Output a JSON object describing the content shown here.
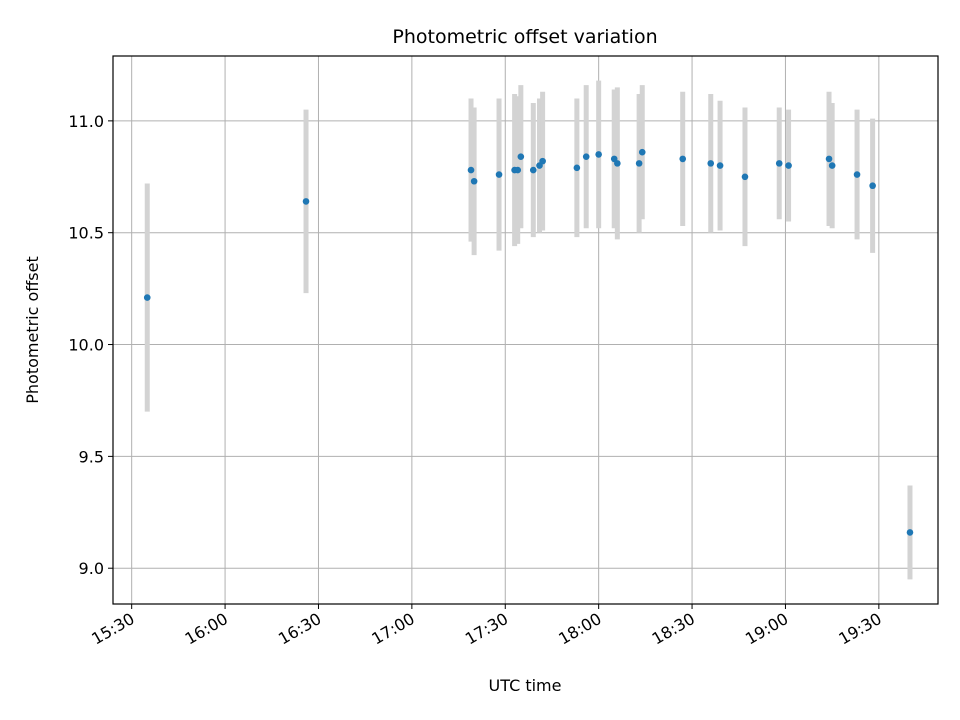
{
  "chart_data": {
    "type": "scatter",
    "title": "Photometric offset variation",
    "xlabel": "UTC time",
    "ylabel": "Photometric offset",
    "xlim": [
      "15:24",
      "19:49"
    ],
    "ylim": [
      8.84,
      11.29
    ],
    "x_ticks": [
      "15:30",
      "16:00",
      "16:30",
      "17:00",
      "17:30",
      "18:00",
      "18:30",
      "19:00",
      "19:30"
    ],
    "y_ticks": [
      "9.0",
      "9.5",
      "10.0",
      "10.5",
      "11.0"
    ],
    "grid": true,
    "marker_color": "#1f77b4",
    "errorbar_color": "#d3d3d3",
    "series": [
      {
        "points": [
          {
            "x": "15:35",
            "y": 10.21,
            "err": 0.51
          },
          {
            "x": "16:26",
            "y": 10.64,
            "err": 0.41
          },
          {
            "x": "17:19",
            "y": 10.78,
            "err": 0.32
          },
          {
            "x": "17:20",
            "y": 10.73,
            "err": 0.33
          },
          {
            "x": "17:28",
            "y": 10.76,
            "err": 0.34
          },
          {
            "x": "17:33",
            "y": 10.78,
            "err": 0.34
          },
          {
            "x": "17:34",
            "y": 10.78,
            "err": 0.33
          },
          {
            "x": "17:35",
            "y": 10.84,
            "err": 0.32
          },
          {
            "x": "17:39",
            "y": 10.78,
            "err": 0.3
          },
          {
            "x": "17:41",
            "y": 10.8,
            "err": 0.3
          },
          {
            "x": "17:42",
            "y": 10.82,
            "err": 0.31
          },
          {
            "x": "17:53",
            "y": 10.79,
            "err": 0.31
          },
          {
            "x": "17:56",
            "y": 10.84,
            "err": 0.32
          },
          {
            "x": "18:00",
            "y": 10.85,
            "err": 0.33
          },
          {
            "x": "18:05",
            "y": 10.83,
            "err": 0.31
          },
          {
            "x": "18:06",
            "y": 10.81,
            "err": 0.34
          },
          {
            "x": "18:13",
            "y": 10.81,
            "err": 0.31
          },
          {
            "x": "18:14",
            "y": 10.86,
            "err": 0.3
          },
          {
            "x": "18:27",
            "y": 10.83,
            "err": 0.3
          },
          {
            "x": "18:36",
            "y": 10.81,
            "err": 0.31
          },
          {
            "x": "18:39",
            "y": 10.8,
            "err": 0.29
          },
          {
            "x": "18:47",
            "y": 10.75,
            "err": 0.31
          },
          {
            "x": "18:58",
            "y": 10.81,
            "err": 0.25
          },
          {
            "x": "19:01",
            "y": 10.8,
            "err": 0.25
          },
          {
            "x": "19:14",
            "y": 10.83,
            "err": 0.3
          },
          {
            "x": "19:15",
            "y": 10.8,
            "err": 0.28
          },
          {
            "x": "19:23",
            "y": 10.76,
            "err": 0.29
          },
          {
            "x": "19:28",
            "y": 10.71,
            "err": 0.3
          },
          {
            "x": "19:40",
            "y": 9.16,
            "err": 0.21
          }
        ]
      }
    ]
  }
}
